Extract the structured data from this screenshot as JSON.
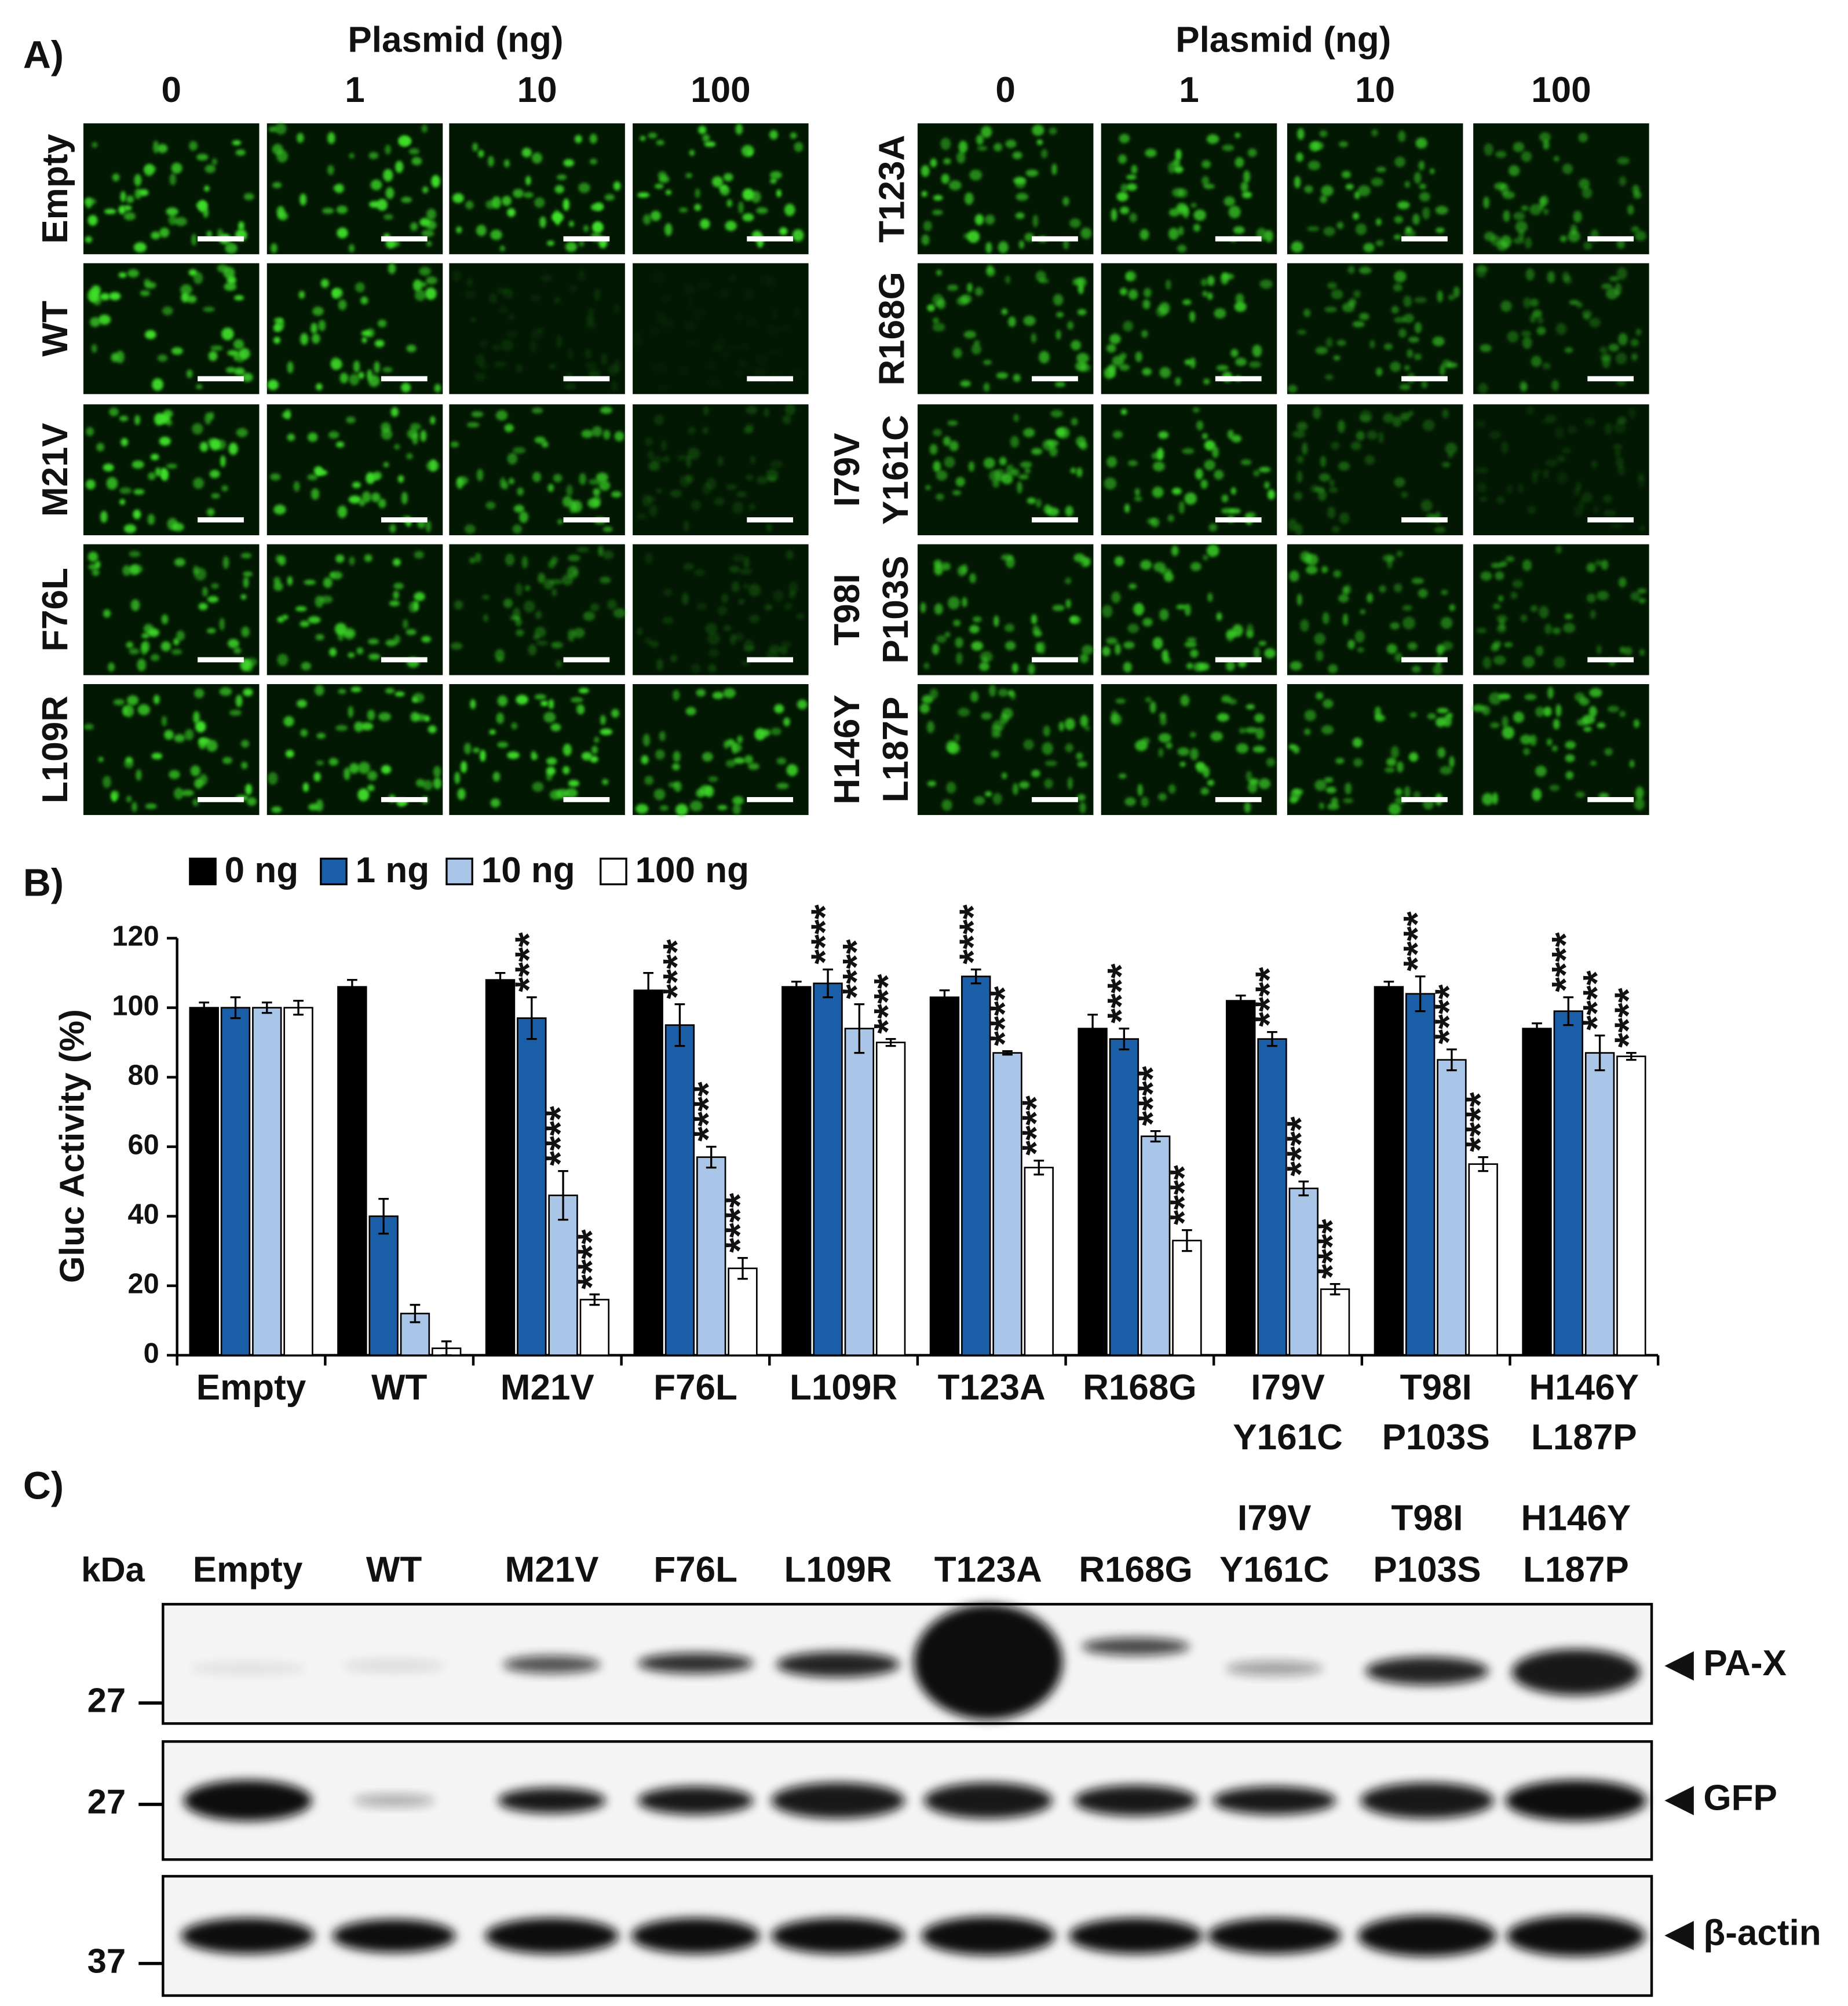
{
  "panel_labels": [
    "A)",
    "B)",
    "C)"
  ],
  "microscopy": {
    "header": "Plasmid (ng)",
    "doses": [
      0,
      1,
      10,
      100
    ],
    "rows_left": [
      [
        "Empty"
      ],
      [
        "WT"
      ],
      [
        "M21V"
      ],
      [
        "F76L"
      ],
      [
        "L109R"
      ]
    ],
    "rows_right": [
      [
        "T123A"
      ],
      [
        "R168G"
      ],
      [
        "I79V",
        "Y161C"
      ],
      [
        "T98I",
        "P103S"
      ],
      [
        "H146Y",
        "L187P"
      ]
    ]
  },
  "chart_data": {
    "type": "bar",
    "y_label": "Gluc Activity (%)",
    "categories": [
      [
        "Empty"
      ],
      [
        "WT"
      ],
      [
        "M21V"
      ],
      [
        "F76L"
      ],
      [
        "L109R"
      ],
      [
        "T123A"
      ],
      [
        "R168G"
      ],
      [
        "I79V",
        "Y161C"
      ],
      [
        "T98I",
        "P103S"
      ],
      [
        "H146Y",
        "L187P"
      ]
    ],
    "series": [
      {
        "name": "0 ng",
        "color": "#000000",
        "values": [
          100,
          106,
          108,
          105,
          106,
          103,
          94,
          102,
          106,
          94
        ],
        "errors": [
          1.5,
          2,
          2,
          5,
          1.5,
          2,
          4,
          1.5,
          1.5,
          1.5
        ],
        "significance": [
          null,
          null,
          null,
          null,
          null,
          null,
          null,
          null,
          null,
          null
        ]
      },
      {
        "name": "1 ng",
        "color": "#1b5ea8",
        "values": [
          100,
          40,
          97,
          95,
          107,
          109,
          91,
          91,
          104,
          99
        ],
        "errors": [
          3,
          5,
          6,
          6,
          4,
          2,
          3,
          2,
          5,
          4
        ],
        "significance": [
          null,
          null,
          "****",
          "****",
          "****",
          "****",
          "****",
          "****",
          "****",
          "****"
        ]
      },
      {
        "name": "10 ng",
        "color": "#a9c6e8",
        "values": [
          100,
          12,
          46,
          57,
          94,
          87,
          63,
          48,
          85,
          87
        ],
        "errors": [
          1.5,
          2.5,
          7,
          3,
          7,
          0.5,
          1.5,
          2,
          3,
          5
        ],
        "significance": [
          null,
          null,
          "****",
          "****",
          "****",
          "****",
          "****",
          "****",
          "****",
          "****"
        ]
      },
      {
        "name": "100 ng",
        "color": "#ffffff",
        "values": [
          100,
          2,
          16,
          25,
          90,
          54,
          33,
          19,
          55,
          86
        ],
        "errors": [
          2,
          2,
          1.5,
          3,
          1,
          2,
          3,
          1.5,
          2,
          1
        ],
        "significance": [
          null,
          null,
          "****",
          "****",
          "****",
          "****",
          "****",
          "****",
          "****",
          "****"
        ]
      }
    ],
    "ylim": [
      0,
      120
    ],
    "yticks": [
      0,
      20,
      40,
      60,
      80,
      100,
      120
    ],
    "legend": "top-left"
  },
  "blot": {
    "unit": "kDa",
    "lanes": [
      [
        "Empty"
      ],
      [
        "WT"
      ],
      [
        "M21V"
      ],
      [
        "F76L"
      ],
      [
        "L109R"
      ],
      [
        "T123A"
      ],
      [
        "R168G"
      ],
      [
        "I79V",
        "Y161C"
      ],
      [
        "T98I",
        "P103S"
      ],
      [
        "H146Y",
        "L187P"
      ]
    ],
    "markers": [
      27,
      27,
      37
    ],
    "bands": [
      "◀ PA-X",
      "◀ GFP",
      "◀ β-actin"
    ]
  }
}
